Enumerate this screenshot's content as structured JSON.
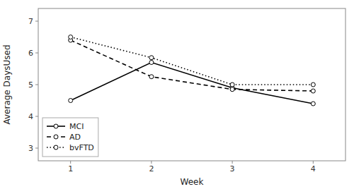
{
  "chart_data": {
    "type": "line",
    "xlabel": "Week",
    "ylabel": "Average DaysUsed",
    "x": [
      1,
      2,
      3,
      4
    ],
    "series": [
      {
        "name": "MCI",
        "color": "#000000",
        "line_style": "solid",
        "marker": "circle",
        "values": [
          4.5,
          5.7,
          4.9,
          4.4
        ]
      },
      {
        "name": "AD",
        "color": "#000000",
        "line_style": "dashed",
        "marker": "circle",
        "values": [
          6.4,
          5.25,
          4.85,
          4.8
        ]
      },
      {
        "name": "bvFTD",
        "color": "#000000",
        "line_style": "dotted",
        "marker": "circle",
        "values": [
          6.5,
          5.85,
          5.0,
          5.0
        ]
      }
    ],
    "xlim": [
      0.6,
      4.4
    ],
    "xticks": [
      1,
      2,
      3,
      4
    ],
    "ylim": [
      2.6,
      7.4
    ],
    "yticks": [
      3,
      4,
      5,
      6,
      7
    ],
    "legend": "lower left",
    "grid": false
  }
}
